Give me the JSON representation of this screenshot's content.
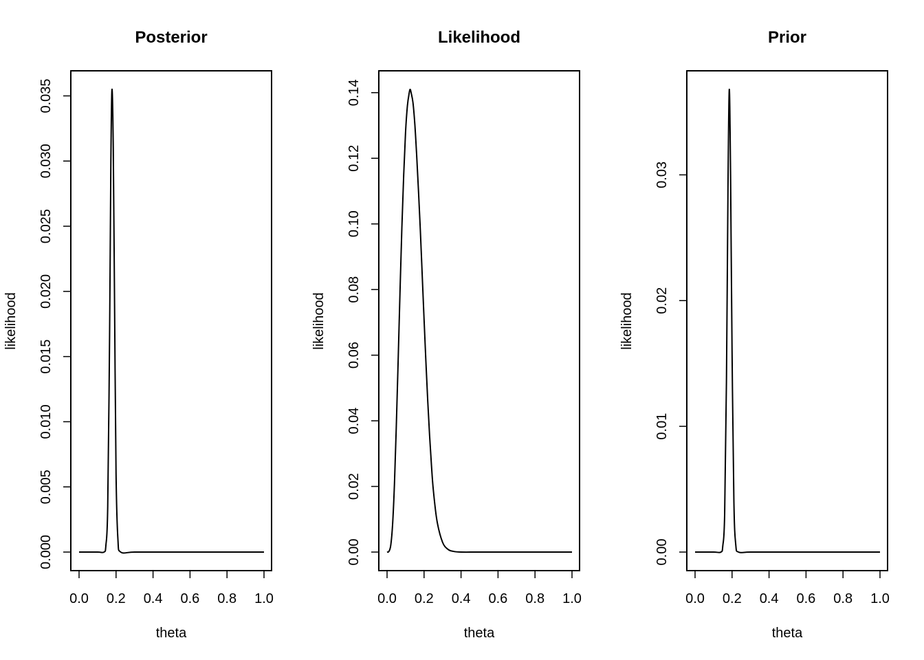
{
  "chart_data": [
    {
      "type": "line",
      "title": "Posterior",
      "xlabel": "theta",
      "ylabel": "likelihood",
      "xlim": [
        0,
        1
      ],
      "ylim": [
        0,
        0.0355
      ],
      "x_ticks": [
        "0.0",
        "0.2",
        "0.4",
        "0.6",
        "0.8",
        "1.0"
      ],
      "y_ticks": [
        "0.000",
        "0.005",
        "0.010",
        "0.015",
        "0.020",
        "0.025",
        "0.030",
        "0.035"
      ],
      "grid": false,
      "series": [
        {
          "x": [
            0.0,
            0.1,
            0.135,
            0.145,
            0.155,
            0.165,
            0.172,
            0.178,
            0.185,
            0.192,
            0.2,
            0.21,
            0.225,
            0.3,
            0.5,
            0.75,
            1.0
          ],
          "y": [
            0.0,
            0.0,
            0.0,
            0.0005,
            0.0035,
            0.0165,
            0.03,
            0.0355,
            0.031,
            0.019,
            0.006,
            0.001,
            0.0,
            0.0,
            0.0,
            0.0,
            0.0
          ]
        }
      ]
    },
    {
      "type": "line",
      "title": "Likelihood",
      "xlabel": "theta",
      "ylabel": "likelihood",
      "xlim": [
        0,
        1
      ],
      "ylim": [
        0,
        0.141
      ],
      "x_ticks": [
        "0.0",
        "0.2",
        "0.4",
        "0.6",
        "0.8",
        "1.0"
      ],
      "y_ticks": [
        "0.00",
        "0.02",
        "0.04",
        "0.06",
        "0.08",
        "0.10",
        "0.12",
        "0.14"
      ],
      "grid": false,
      "series": [
        {
          "x": [
            0.0,
            0.01,
            0.02,
            0.03,
            0.04,
            0.05,
            0.06,
            0.07,
            0.08,
            0.09,
            0.1,
            0.11,
            0.12,
            0.125,
            0.13,
            0.14,
            0.15,
            0.16,
            0.17,
            0.18,
            0.19,
            0.2,
            0.21,
            0.22,
            0.23,
            0.24,
            0.25,
            0.27,
            0.3,
            0.33,
            0.36,
            0.4,
            0.5,
            0.7,
            1.0
          ],
          "y": [
            0.0,
            0.0002,
            0.0021,
            0.0085,
            0.0208,
            0.0384,
            0.0584,
            0.0793,
            0.0988,
            0.115,
            0.128,
            0.136,
            0.14,
            0.141,
            0.14,
            0.137,
            0.1305,
            0.121,
            0.11,
            0.098,
            0.0845,
            0.071,
            0.058,
            0.046,
            0.0355,
            0.0265,
            0.019,
            0.0095,
            0.003,
            0.0008,
            0.0002,
            0.0,
            0.0,
            0.0,
            0.0
          ]
        }
      ]
    },
    {
      "type": "line",
      "title": "Prior",
      "xlabel": "theta",
      "ylabel": "likelihood",
      "xlim": [
        0,
        1
      ],
      "ylim": [
        0,
        0.0368
      ],
      "x_ticks": [
        "0.0",
        "0.2",
        "0.4",
        "0.6",
        "0.8",
        "1.0"
      ],
      "y_ticks": [
        "0.00",
        "0.01",
        "0.02",
        "0.03"
      ],
      "grid": false,
      "series": [
        {
          "x": [
            0.0,
            0.1,
            0.14,
            0.15,
            0.16,
            0.17,
            0.178,
            0.185,
            0.192,
            0.2,
            0.21,
            0.22,
            0.235,
            0.3,
            0.5,
            0.75,
            1.0
          ],
          "y": [
            0.0,
            0.0,
            0.0,
            0.0005,
            0.003,
            0.014,
            0.029,
            0.0368,
            0.03,
            0.016,
            0.004,
            0.0006,
            0.0,
            0.0,
            0.0,
            0.0,
            0.0
          ]
        }
      ]
    }
  ]
}
